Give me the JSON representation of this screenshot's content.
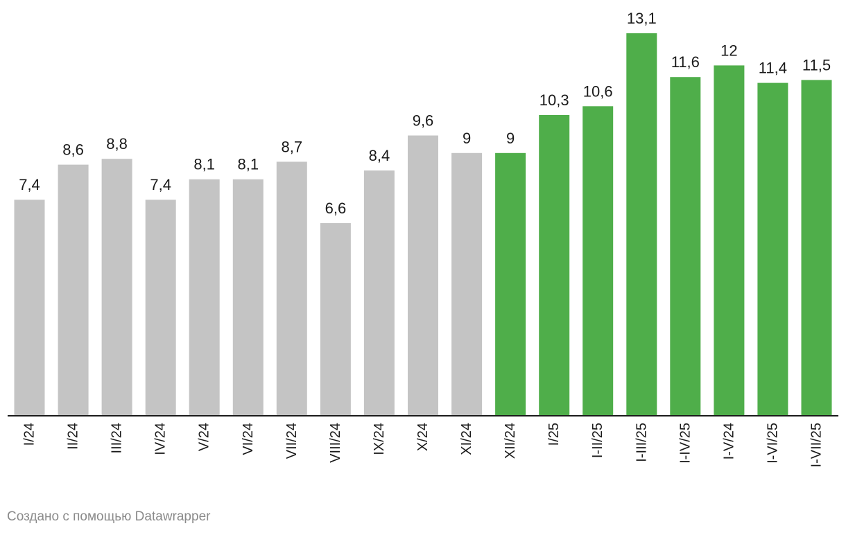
{
  "chart_data": {
    "type": "bar",
    "categories": [
      "I/24",
      "II/24",
      "III/24",
      "IV/24",
      "V/24",
      "VI/24",
      "VII/24",
      "VIII/24",
      "IX/24",
      "X/24",
      "XI/24",
      "XII/24",
      "I/25",
      "I-II/25",
      "I-III/25",
      "I-IV/25",
      "I-V/24",
      "I-VI/25",
      "I-VII/25"
    ],
    "values": [
      7.4,
      8.6,
      8.8,
      7.4,
      8.1,
      8.1,
      8.7,
      6.6,
      8.4,
      9.6,
      9,
      9,
      10.3,
      10.6,
      13.1,
      11.6,
      12,
      11.4,
      11.5
    ],
    "value_labels": [
      "7,4",
      "8,6",
      "8,8",
      "7,4",
      "8,1",
      "8,1",
      "8,7",
      "6,6",
      "8,4",
      "9,6",
      "9",
      "9",
      "10,3",
      "10,6",
      "13,1",
      "11,6",
      "12",
      "11,4",
      "11,5"
    ],
    "highlight_from_index": 11,
    "colors": {
      "default": "#c4c4c4",
      "highlight": "#4fae4a",
      "axis": "#1a1a1a"
    },
    "ylim": [
      0,
      13.1
    ],
    "grid": false,
    "title": "",
    "xlabel": "",
    "ylabel": ""
  },
  "footer": {
    "credit": "Создано с помощью Datawrapper"
  }
}
